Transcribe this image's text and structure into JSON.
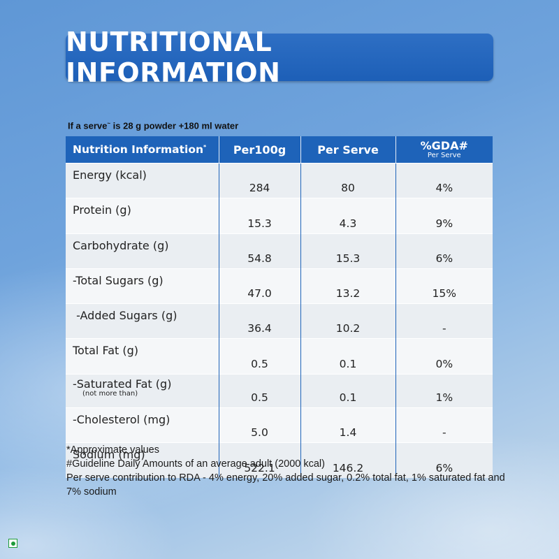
{
  "title": "NUTRITIONAL INFORMATION",
  "serve_note": {
    "prefix": "If a serve",
    "mark": "~",
    "suffix": " is 28 g powder +180 ml water"
  },
  "table": {
    "headers": {
      "nutrient": "Nutrition Information",
      "nutrient_mark": "*",
      "per100g": "Per100g",
      "per_serve": "Per Serve",
      "gda": "%GDA#",
      "gda_sub": "Per Serve"
    },
    "rows": [
      {
        "label": "Energy (kcal)",
        "note": "",
        "per100g": "284",
        "per_serve": "80",
        "gda": "4%"
      },
      {
        "label": "Protein (g)",
        "note": "",
        "per100g": "15.3",
        "per_serve": "4.3",
        "gda": "9%"
      },
      {
        "label": "Carbohydrate (g)",
        "note": "",
        "per100g": "54.8",
        "per_serve": "15.3",
        "gda": "6%"
      },
      {
        "label": "-Total Sugars (g)",
        "note": "",
        "per100g": "47.0",
        "per_serve": "13.2",
        "gda": "15%"
      },
      {
        "label": " -Added Sugars (g)",
        "note": "",
        "per100g": "36.4",
        "per_serve": "10.2",
        "gda": "-"
      },
      {
        "label": "Total Fat (g)",
        "note": "",
        "per100g": "0.5",
        "per_serve": "0.1",
        "gda": "0%"
      },
      {
        "label": "-Saturated Fat (g)",
        "note": "(not more than)",
        "per100g": "0.5",
        "per_serve": "0.1",
        "gda": "1%"
      },
      {
        "label": "-Cholesterol (mg)",
        "note": "",
        "per100g": "5.0",
        "per_serve": "1.4",
        "gda": "-"
      },
      {
        "label": "Sodium (mg)",
        "note": "",
        "per100g": "522.1",
        "per_serve": "146.2",
        "gda": "6%"
      }
    ]
  },
  "footnotes": [
    "*Approximate values",
    "#Guideline Daily Amounts of an average adult (2000 kcal)",
    "Per serve contribution to RDA - 4% energy, 20% added sugar, 0.2% total fat, 1% saturated fat and 7% sodium"
  ],
  "colors": {
    "banner": "#1e63b9",
    "veg_mark": "#1e9b3a"
  },
  "icons": {
    "veg_mark": "veg-symbol-icon"
  }
}
